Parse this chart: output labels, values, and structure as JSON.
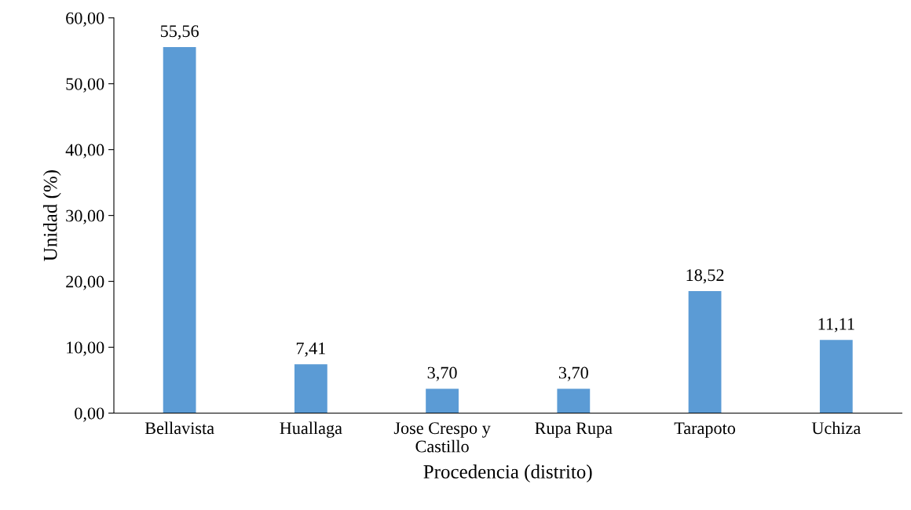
{
  "chart_data": {
    "type": "bar",
    "xlabel": "Procedencia (distrito)",
    "ylabel": "Unidad (%)",
    "categories": [
      "Bellavista",
      "Huallaga",
      "Jose Crespo y\nCastillo",
      "Rupa Rupa",
      "Tarapoto",
      "Uchiza"
    ],
    "values": [
      55.56,
      7.41,
      3.7,
      3.7,
      18.52,
      11.11
    ],
    "value_labels": [
      "55,56",
      "7,41",
      "3,70",
      "3,70",
      "18,52",
      "11,11"
    ],
    "color": "#5b9bd5",
    "ylim": [
      0,
      60
    ],
    "yticks": [
      {
        "value": 0,
        "label": "0,00"
      },
      {
        "value": 10,
        "label": "10,00"
      },
      {
        "value": 20,
        "label": "20,00"
      },
      {
        "value": 30,
        "label": "30,00"
      },
      {
        "value": 40,
        "label": "40,00"
      },
      {
        "value": 50,
        "label": "50,00"
      },
      {
        "value": 60,
        "label": "60,00"
      }
    ],
    "grid": false
  }
}
